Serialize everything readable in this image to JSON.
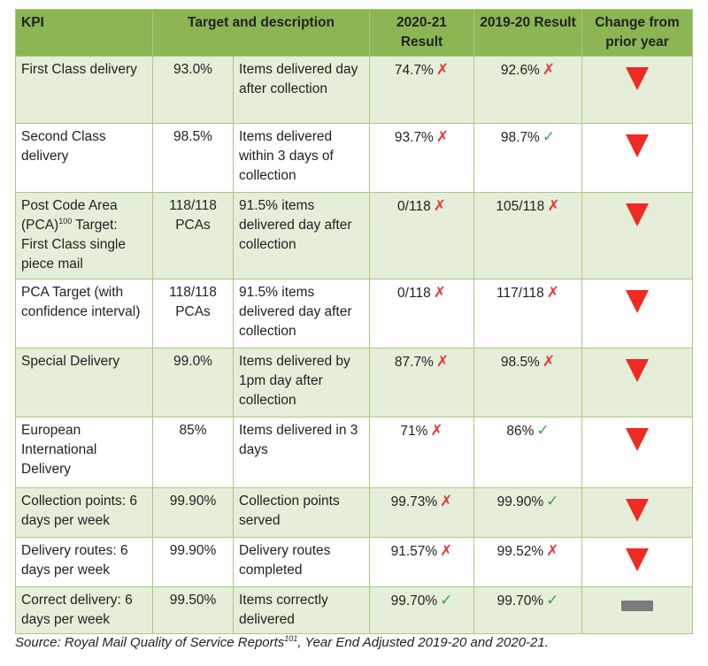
{
  "headers": {
    "kpi": "KPI",
    "target": "Target and description",
    "result_2021": "2020-21 Result",
    "result_1920": "2019-20 Result",
    "change": "Change from prior year"
  },
  "rows": [
    {
      "kpi": "First Class delivery",
      "kpi_sup": "",
      "kpi_after": "",
      "target": "93.0%",
      "description": "Items delivered day after collection",
      "result_2021": "74.7%",
      "result_2021_met": false,
      "result_1920": "92.6%",
      "result_1920_met": false,
      "change": "down"
    },
    {
      "kpi": "Second Class delivery",
      "kpi_sup": "",
      "kpi_after": "",
      "target": "98.5%",
      "description": "Items delivered within 3 days of collection",
      "result_2021": "93.7%",
      "result_2021_met": false,
      "result_1920": "98.7%",
      "result_1920_met": true,
      "change": "down"
    },
    {
      "kpi": "Post Code Area (PCA)",
      "kpi_sup": "100",
      "kpi_after": " Target: First Class single piece mail",
      "target": "118/118 PCAs",
      "description": "91.5% items delivered day after collection",
      "result_2021": "0/118",
      "result_2021_met": false,
      "result_1920": "105/118",
      "result_1920_met": false,
      "change": "down"
    },
    {
      "kpi": "PCA Target (with confidence interval)",
      "kpi_sup": "",
      "kpi_after": "",
      "target": "118/118 PCAs",
      "description": "91.5% items delivered day after collection",
      "result_2021": "0/118",
      "result_2021_met": false,
      "result_1920": "117/118",
      "result_1920_met": false,
      "change": "down"
    },
    {
      "kpi": "Special Delivery",
      "kpi_sup": "",
      "kpi_after": "",
      "target": "99.0%",
      "description": "Items delivered by 1pm day after collection",
      "result_2021": "87.7%",
      "result_2021_met": false,
      "result_1920": "98.5%",
      "result_1920_met": false,
      "change": "down"
    },
    {
      "kpi": "European International Delivery",
      "kpi_sup": "",
      "kpi_after": "",
      "target": "85%",
      "description": "Items delivered in 3 days",
      "result_2021": "71%",
      "result_2021_met": false,
      "result_1920": "86%",
      "result_1920_met": true,
      "change": "down"
    },
    {
      "kpi": "Collection points: 6 days per week",
      "kpi_sup": "",
      "kpi_after": "",
      "target": "99.90%",
      "description": "Collection points served",
      "result_2021": "99.73%",
      "result_2021_met": false,
      "result_1920": "99.90%",
      "result_1920_met": true,
      "change": "down"
    },
    {
      "kpi": "Delivery routes: 6 days per week",
      "kpi_sup": "",
      "kpi_after": "",
      "target": "99.90%",
      "description": "Delivery routes completed",
      "result_2021": "91.57%",
      "result_2021_met": false,
      "result_1920": "99.52%",
      "result_1920_met": false,
      "change": "down"
    },
    {
      "kpi": "Correct delivery: 6 days per week",
      "kpi_sup": "",
      "kpi_after": "",
      "target": "99.50%",
      "description": "Items correctly delivered",
      "result_2021": "99.70%",
      "result_2021_met": true,
      "result_1920": "99.70%",
      "result_1920_met": true,
      "change": "no-change"
    }
  ],
  "source": {
    "text": "Source: Royal Mail Quality of Service Reports",
    "sup": "101",
    "after": ", Year End Adjusted 2019-20 and 2020-21."
  },
  "symbols": {
    "met": "✓",
    "not_met": "✗"
  },
  "colors": {
    "header_bg": "#8bb653",
    "row_tint": "#e5eed9",
    "border": "#a9c980",
    "cross": "#e53935",
    "tick": "#43a047",
    "down_arrow": "#ee2a22",
    "no_change_bar": "#7b7b7b"
  }
}
